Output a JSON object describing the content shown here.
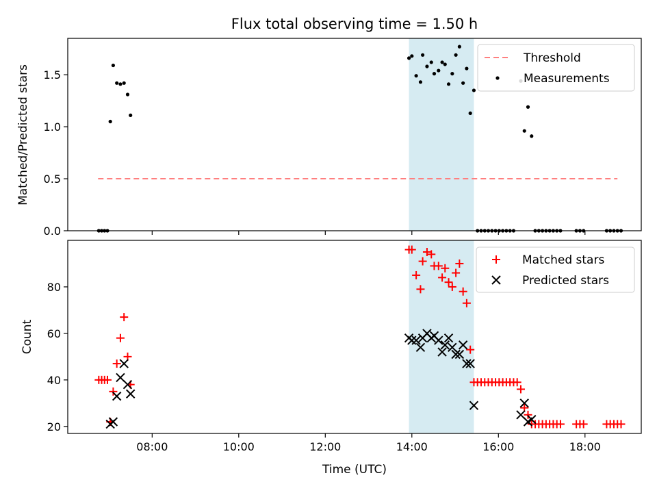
{
  "chart_data": [
    {
      "type": "scatter",
      "title": "Flux total observing time = 1.50 h",
      "ylabel": "Matched/Predicted stars",
      "ylim": [
        0,
        1.85
      ],
      "xlim_hours": [
        6.05,
        19.3
      ],
      "y_ticks": [
        0.0,
        0.5,
        1.0,
        1.5
      ],
      "y_tick_labels": [
        "0.0",
        "0.5",
        "1.0",
        "1.5"
      ],
      "x_ticks": [
        "08:00",
        "10:00",
        "12:00",
        "14:00",
        "16:00",
        "18:00"
      ],
      "shaded_span": [
        "13:56",
        "15:26"
      ],
      "legend_position": "top-right",
      "threshold": {
        "name": "Threshold",
        "color": "#ff7f7f",
        "y": 0.5,
        "x_start": "06:45",
        "x_end": "18:45"
      },
      "series": [
        {
          "name": "Measurements",
          "marker": "dot",
          "color": "#000000",
          "points": [
            [
              "06:46",
              0.0
            ],
            [
              "06:50",
              0.0
            ],
            [
              "06:54",
              0.0
            ],
            [
              "06:58",
              0.0
            ],
            [
              "07:02",
              1.05
            ],
            [
              "07:06",
              1.59
            ],
            [
              "07:11",
              1.42
            ],
            [
              "07:16",
              1.41
            ],
            [
              "07:21",
              1.42
            ],
            [
              "07:26",
              1.31
            ],
            [
              "07:30",
              1.11
            ],
            [
              "13:56",
              1.66
            ],
            [
              "14:00",
              1.68
            ],
            [
              "14:06",
              1.49
            ],
            [
              "14:12",
              1.43
            ],
            [
              "14:15",
              1.69
            ],
            [
              "14:21",
              1.58
            ],
            [
              "14:27",
              1.62
            ],
            [
              "14:31",
              1.51
            ],
            [
              "14:37",
              1.54
            ],
            [
              "14:42",
              1.62
            ],
            [
              "14:46",
              1.6
            ],
            [
              "14:51",
              1.41
            ],
            [
              "14:56",
              1.51
            ],
            [
              "15:01",
              1.69
            ],
            [
              "15:06",
              1.77
            ],
            [
              "15:11",
              1.42
            ],
            [
              "15:16",
              1.56
            ],
            [
              "15:21",
              1.13
            ],
            [
              "15:26",
              1.35
            ],
            [
              "15:31",
              0.0
            ],
            [
              "15:36",
              0.0
            ],
            [
              "15:41",
              0.0
            ],
            [
              "15:46",
              0.0
            ],
            [
              "15:51",
              0.0
            ],
            [
              "15:56",
              0.0
            ],
            [
              "16:01",
              0.0
            ],
            [
              "16:06",
              0.0
            ],
            [
              "16:11",
              0.0
            ],
            [
              "16:16",
              0.0
            ],
            [
              "16:21",
              0.0
            ],
            [
              "16:31",
              1.44
            ],
            [
              "16:36",
              0.96
            ],
            [
              "16:41",
              1.19
            ],
            [
              "16:46",
              0.91
            ],
            [
              "16:51",
              0.0
            ],
            [
              "16:56",
              0.0
            ],
            [
              "17:01",
              0.0
            ],
            [
              "17:06",
              0.0
            ],
            [
              "17:11",
              0.0
            ],
            [
              "17:16",
              0.0
            ],
            [
              "17:21",
              0.0
            ],
            [
              "17:26",
              0.0
            ],
            [
              "17:48",
              0.0
            ],
            [
              "17:53",
              0.0
            ],
            [
              "17:58",
              0.0
            ],
            [
              "18:30",
              0.0
            ],
            [
              "18:35",
              0.0
            ],
            [
              "18:40",
              0.0
            ],
            [
              "18:45",
              0.0
            ],
            [
              "18:50",
              0.0
            ]
          ]
        }
      ]
    },
    {
      "type": "scatter",
      "xlabel": "Time (UTC)",
      "ylabel": "Count",
      "ylim": [
        17,
        100
      ],
      "xlim_hours": [
        6.05,
        19.3
      ],
      "y_ticks": [
        20,
        40,
        60,
        80
      ],
      "y_tick_labels": [
        "20",
        "40",
        "60",
        "80"
      ],
      "x_ticks": [
        "08:00",
        "10:00",
        "12:00",
        "14:00",
        "16:00",
        "18:00"
      ],
      "shaded_span": [
        "13:56",
        "15:26"
      ],
      "legend_position": "top-right",
      "series": [
        {
          "name": "Matched stars",
          "marker": "plus",
          "color": "#ff0000",
          "points": [
            [
              "06:46",
              40
            ],
            [
              "06:50",
              40
            ],
            [
              "06:54",
              40
            ],
            [
              "06:58",
              40
            ],
            [
              "07:02",
              22
            ],
            [
              "07:06",
              35
            ],
            [
              "07:11",
              47
            ],
            [
              "07:16",
              58
            ],
            [
              "07:21",
              67
            ],
            [
              "07:26",
              50
            ],
            [
              "07:30",
              38
            ],
            [
              "13:56",
              96
            ],
            [
              "14:00",
              96
            ],
            [
              "14:06",
              85
            ],
            [
              "14:12",
              79
            ],
            [
              "14:15",
              91
            ],
            [
              "14:21",
              95
            ],
            [
              "14:27",
              94
            ],
            [
              "14:31",
              89
            ],
            [
              "14:37",
              89
            ],
            [
              "14:42",
              84
            ],
            [
              "14:46",
              88
            ],
            [
              "14:51",
              82
            ],
            [
              "14:56",
              80
            ],
            [
              "15:01",
              86
            ],
            [
              "15:06",
              90
            ],
            [
              "15:11",
              78
            ],
            [
              "15:16",
              73
            ],
            [
              "15:21",
              53
            ],
            [
              "15:26",
              39
            ],
            [
              "15:31",
              39
            ],
            [
              "15:36",
              39
            ],
            [
              "15:41",
              39
            ],
            [
              "15:46",
              39
            ],
            [
              "15:51",
              39
            ],
            [
              "15:56",
              39
            ],
            [
              "16:01",
              39
            ],
            [
              "16:06",
              39
            ],
            [
              "16:11",
              39
            ],
            [
              "16:16",
              39
            ],
            [
              "16:21",
              39
            ],
            [
              "16:26",
              39
            ],
            [
              "16:31",
              36
            ],
            [
              "16:36",
              28
            ],
            [
              "16:41",
              25
            ],
            [
              "16:46",
              21
            ],
            [
              "16:51",
              21
            ],
            [
              "16:56",
              21
            ],
            [
              "17:01",
              21
            ],
            [
              "17:06",
              21
            ],
            [
              "17:11",
              21
            ],
            [
              "17:16",
              21
            ],
            [
              "17:21",
              21
            ],
            [
              "17:26",
              21
            ],
            [
              "17:48",
              21
            ],
            [
              "17:53",
              21
            ],
            [
              "17:58",
              21
            ],
            [
              "18:30",
              21
            ],
            [
              "18:35",
              21
            ],
            [
              "18:40",
              21
            ],
            [
              "18:45",
              21
            ],
            [
              "18:50",
              21
            ]
          ]
        },
        {
          "name": "Predicted stars",
          "marker": "x",
          "color": "#000000",
          "points": [
            [
              "07:02",
              21
            ],
            [
              "07:06",
              22
            ],
            [
              "07:11",
              33
            ],
            [
              "07:16",
              41
            ],
            [
              "07:21",
              47
            ],
            [
              "07:26",
              38
            ],
            [
              "07:30",
              34
            ],
            [
              "13:56",
              58
            ],
            [
              "14:00",
              57
            ],
            [
              "14:06",
              57
            ],
            [
              "14:12",
              54
            ],
            [
              "14:15",
              58
            ],
            [
              "14:21",
              60
            ],
            [
              "14:27",
              58
            ],
            [
              "14:31",
              59
            ],
            [
              "14:37",
              57
            ],
            [
              "14:42",
              52
            ],
            [
              "14:46",
              55
            ],
            [
              "14:51",
              58
            ],
            [
              "14:56",
              54
            ],
            [
              "15:01",
              51
            ],
            [
              "15:06",
              51
            ],
            [
              "15:11",
              55
            ],
            [
              "15:16",
              47
            ],
            [
              "15:21",
              47
            ],
            [
              "15:26",
              29
            ],
            [
              "16:31",
              25
            ],
            [
              "16:36",
              30
            ],
            [
              "16:41",
              22
            ],
            [
              "16:46",
              23
            ]
          ]
        }
      ]
    }
  ]
}
